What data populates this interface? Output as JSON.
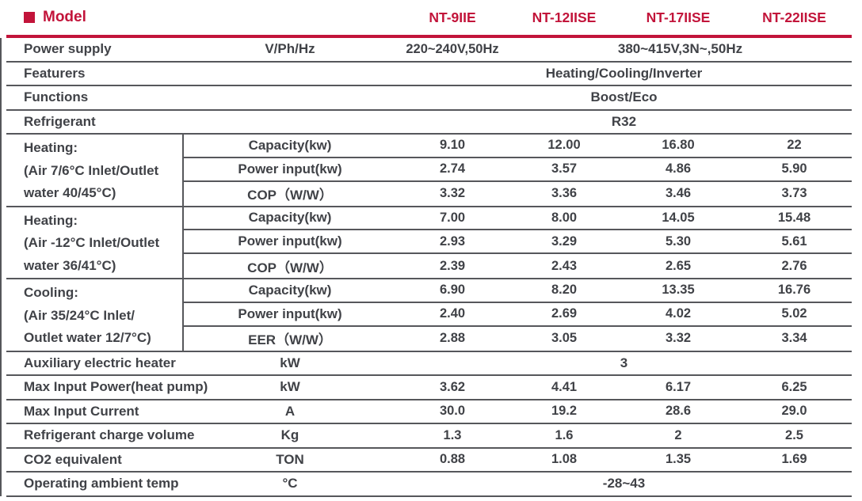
{
  "colors": {
    "accent": "#c2143a",
    "text": "#404247",
    "line": "#56575b"
  },
  "header": {
    "title": "Model",
    "models": [
      "NT-9IIE",
      "NT-12IISE",
      "NT-17IISE",
      "NT-22IISE"
    ]
  },
  "power_supply": {
    "label": "Power supply",
    "unit": "V/Ph/Hz",
    "single": "220~240V,50Hz",
    "triple": "380~415V,3N~,50Hz"
  },
  "featurers": {
    "label": "Featurers",
    "value": "Heating/Cooling/Inverter"
  },
  "functions": {
    "label": "Functions",
    "value": "Boost/Eco"
  },
  "refrigerant": {
    "label": "Refrigerant",
    "value": "R32"
  },
  "sections": [
    {
      "label_lines": [
        "Heating:",
        "(Air 7/6°C Inlet/Outlet",
        "water 40/45°C)"
      ],
      "rows": [
        {
          "name": "Capacity(kw)",
          "values": [
            "9.10",
            "12.00",
            "16.80",
            "22"
          ]
        },
        {
          "name": "Power input(kw)",
          "values": [
            "2.74",
            "3.57",
            "4.86",
            "5.90"
          ]
        },
        {
          "name": "COP（W/W）",
          "values": [
            "3.32",
            "3.36",
            "3.46",
            "3.73"
          ]
        }
      ]
    },
    {
      "label_lines": [
        "Heating:",
        "(Air -12°C Inlet/Outlet",
        "water 36/41°C)"
      ],
      "rows": [
        {
          "name": "Capacity(kw)",
          "values": [
            "7.00",
            "8.00",
            "14.05",
            "15.48"
          ]
        },
        {
          "name": "Power input(kw)",
          "values": [
            "2.93",
            "3.29",
            "5.30",
            "5.61"
          ]
        },
        {
          "name": "COP（W/W）",
          "values": [
            "2.39",
            "2.43",
            "2.65",
            "2.76"
          ]
        }
      ]
    },
    {
      "label_lines": [
        "Cooling:",
        "(Air 35/24°C Inlet/",
        "Outlet water 12/7°C)"
      ],
      "rows": [
        {
          "name": "Capacity(kw)",
          "values": [
            "6.90",
            "8.20",
            "13.35",
            "16.76"
          ]
        },
        {
          "name": "Power input(kw)",
          "values": [
            "2.40",
            "2.69",
            "4.02",
            "5.02"
          ]
        },
        {
          "name": "EER（W/W）",
          "values": [
            "2.88",
            "3.05",
            "3.32",
            "3.34"
          ]
        }
      ]
    }
  ],
  "bottom_rows": [
    {
      "label": "Auxiliary electric heater",
      "unit": "kW",
      "span_value": "3"
    },
    {
      "label": "Max Input Power(heat pump)",
      "unit": "kW",
      "values": [
        "3.62",
        "4.41",
        "6.17",
        "6.25"
      ]
    },
    {
      "label": "Max Input Current",
      "unit": "A",
      "values": [
        "30.0",
        "19.2",
        "28.6",
        "29.0"
      ]
    },
    {
      "label": "Refrigerant charge volume",
      "unit": "Kg",
      "values": [
        "1.3",
        "1.6",
        "2",
        "2.5"
      ]
    },
    {
      "label": "CO2 equivalent",
      "unit": "TON",
      "values": [
        "0.88",
        "1.08",
        "1.35",
        "1.69"
      ]
    },
    {
      "label": "Operating ambient temp",
      "unit": "°C",
      "span_value": "-28~43"
    }
  ]
}
